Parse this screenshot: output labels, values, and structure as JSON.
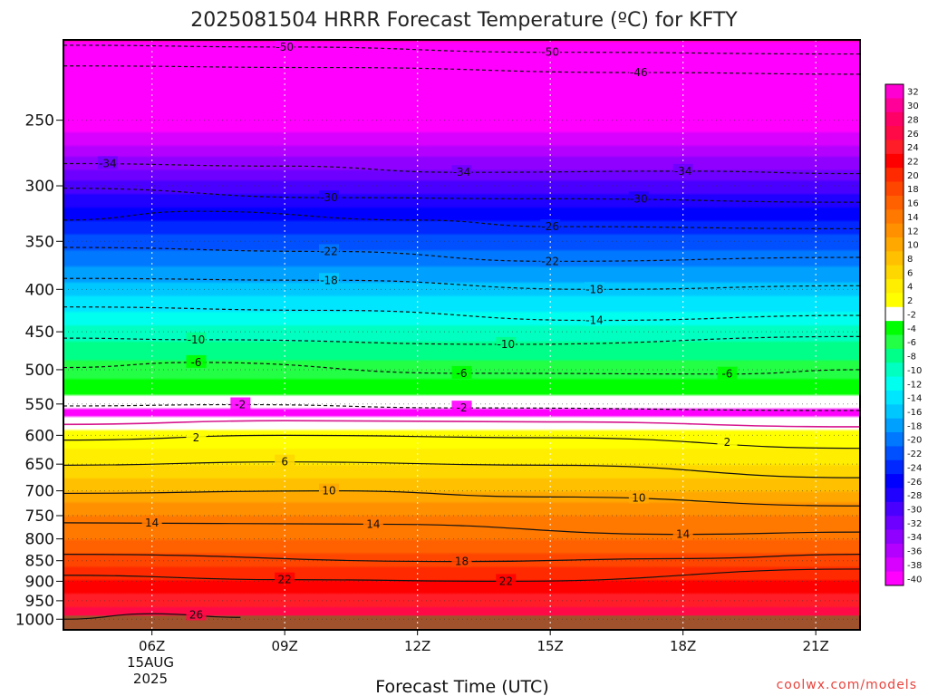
{
  "chart_data": {
    "type": "heatmap",
    "title": "2025081504 HRRR Forecast Temperature (ºC) for KFTY",
    "xlabel": "Forecast Time (UTC)",
    "ylabel": "",
    "credit": "coolwx.com/models",
    "x_ticks": [
      "06Z",
      "09Z",
      "12Z",
      "15Z",
      "18Z",
      "21Z"
    ],
    "x_range_hours_utc": [
      4,
      22
    ],
    "x_tick_hours": [
      6,
      9,
      12,
      15,
      18,
      21
    ],
    "date_label": [
      "15AUG",
      "2025"
    ],
    "y_ticks": [
      "250",
      "300",
      "350",
      "400",
      "450",
      "500",
      "550",
      "600",
      "650",
      "700",
      "750",
      "800",
      "850",
      "900",
      "950",
      "1000"
    ],
    "y_tick_values": [
      250,
      300,
      350,
      400,
      450,
      500,
      550,
      600,
      650,
      700,
      750,
      800,
      850,
      900,
      950,
      1000
    ],
    "y_range_hpa": [
      200,
      1030
    ],
    "y_scale": "log",
    "grid": true,
    "colorbar": {
      "levels": [
        "32",
        "30",
        "28",
        "26",
        "24",
        "22",
        "20",
        "18",
        "16",
        "14",
        "12",
        "10",
        "8",
        "6",
        "4",
        "2",
        "-2",
        "-4",
        "-6",
        "-8",
        "-10",
        "-12",
        "-14",
        "-16",
        "-18",
        "-20",
        "-22",
        "-24",
        "-26",
        "-28",
        "-30",
        "-32",
        "-34",
        "-36",
        "-38",
        "-40"
      ],
      "colors": [
        "#ff00d2",
        "#ff0099",
        "#ff0066",
        "#ff0a46",
        "#ff1e28",
        "#ff0000",
        "#ff2a00",
        "#ff4600",
        "#ff6000",
        "#ff7800",
        "#ff9000",
        "#ffa800",
        "#ffc000",
        "#ffd700",
        "#ffee00",
        "#ffff00",
        "#ffffff",
        "#00ff00",
        "#22ff44",
        "#00ff88",
        "#00ffc0",
        "#00ffee",
        "#00e6ff",
        "#00c8ff",
        "#00a0ff",
        "#0078ff",
        "#0050ff",
        "#0028ff",
        "#0000ff",
        "#2000ff",
        "#4a00ff",
        "#6e00ff",
        "#9000ff",
        "#b400ff",
        "#d800ff",
        "#ff00ff"
      ],
      "position": "right"
    },
    "temperature_profile": [
      {
        "p": 200,
        "t": -52
      },
      {
        "p": 250,
        "t": -42
      },
      {
        "p": 300,
        "t": -31
      },
      {
        "p": 350,
        "t": -23
      },
      {
        "p": 400,
        "t": -17
      },
      {
        "p": 450,
        "t": -11
      },
      {
        "p": 500,
        "t": -7
      },
      {
        "p": 550,
        "t": -3
      },
      {
        "p": 560,
        "t": -1
      },
      {
        "p": 580,
        "t": 1
      },
      {
        "p": 600,
        "t": 2.5
      },
      {
        "p": 650,
        "t": 6
      },
      {
        "p": 700,
        "t": 10
      },
      {
        "p": 750,
        "t": 14
      },
      {
        "p": 800,
        "t": 16
      },
      {
        "p": 850,
        "t": 19
      },
      {
        "p": 900,
        "t": 22
      },
      {
        "p": 950,
        "t": 25
      },
      {
        "p": 1000,
        "t": 28
      },
      {
        "p": 1030,
        "t": 29
      }
    ],
    "contours": [
      {
        "label": "-50",
        "style": "dashed",
        "points": [
          [
            4,
            203
          ],
          [
            9,
            204
          ],
          [
            15,
            207
          ],
          [
            22,
            208
          ]
        ],
        "label_positions": [
          [
            9,
            204
          ],
          [
            15,
            207
          ]
        ]
      },
      {
        "label": "-46",
        "style": "dashed",
        "points": [
          [
            4,
            215
          ],
          [
            10,
            216
          ],
          [
            17,
            219
          ],
          [
            22,
            220
          ]
        ],
        "label_positions": [
          [
            17,
            219
          ]
        ]
      },
      {
        "label": "-34",
        "style": "dashed",
        "points": [
          [
            4,
            282
          ],
          [
            9,
            284
          ],
          [
            13,
            289
          ],
          [
            18,
            288
          ],
          [
            22,
            290
          ]
        ],
        "label_positions": [
          [
            5,
            282
          ],
          [
            13,
            289
          ],
          [
            18,
            288
          ]
        ]
      },
      {
        "label": "-30",
        "style": "dashed",
        "points": [
          [
            4,
            302
          ],
          [
            10,
            310
          ],
          [
            15,
            311
          ],
          [
            22,
            314
          ]
        ],
        "label_positions": [
          [
            10,
            310
          ],
          [
            17,
            311
          ]
        ]
      },
      {
        "label": "-26",
        "style": "dashed",
        "points": [
          [
            4,
            330
          ],
          [
            7,
            322
          ],
          [
            12,
            330
          ],
          [
            15,
            336
          ],
          [
            22,
            338
          ]
        ],
        "label_positions": [
          [
            15,
            336
          ]
        ]
      },
      {
        "label": "-22",
        "style": "dashed",
        "points": [
          [
            4,
            356
          ],
          [
            10,
            360
          ],
          [
            15,
            370
          ],
          [
            22,
            366
          ]
        ],
        "label_positions": [
          [
            10,
            360
          ],
          [
            15,
            370
          ]
        ]
      },
      {
        "label": "-18",
        "style": "dashed",
        "points": [
          [
            4,
            388
          ],
          [
            10,
            390
          ],
          [
            16,
            400
          ],
          [
            22,
            396
          ]
        ],
        "label_positions": [
          [
            10,
            390
          ],
          [
            16,
            400
          ]
        ]
      },
      {
        "label": "-14",
        "style": "dashed",
        "points": [
          [
            4,
            420
          ],
          [
            10,
            424
          ],
          [
            16,
            436
          ],
          [
            22,
            430
          ]
        ],
        "label_positions": [
          [
            16,
            436
          ]
        ]
      },
      {
        "label": "-10",
        "style": "dashed",
        "points": [
          [
            4,
            458
          ],
          [
            7,
            460
          ],
          [
            14,
            466
          ],
          [
            22,
            456
          ]
        ],
        "label_positions": [
          [
            7,
            460
          ],
          [
            14,
            466
          ]
        ]
      },
      {
        "label": "-6",
        "style": "dashed",
        "points": [
          [
            4,
            497
          ],
          [
            7,
            490
          ],
          [
            13,
            505
          ],
          [
            19,
            506
          ],
          [
            22,
            500
          ]
        ],
        "label_positions": [
          [
            7,
            490
          ],
          [
            13,
            505
          ],
          [
            19,
            506
          ]
        ]
      },
      {
        "label": "-2",
        "style": "dashed",
        "points": [
          [
            4,
            553
          ],
          [
            8,
            551
          ],
          [
            13,
            556
          ],
          [
            22,
            560
          ]
        ],
        "label_positions": [
          [
            8,
            551
          ],
          [
            13,
            556
          ]
        ]
      },
      {
        "label": "0",
        "style": "magenta",
        "points": [
          [
            4,
            582
          ],
          [
            9,
            576
          ],
          [
            15,
            578
          ],
          [
            22,
            586
          ]
        ],
        "label_positions": []
      },
      {
        "label": "2",
        "style": "solid",
        "points": [
          [
            4,
            608
          ],
          [
            9,
            600
          ],
          [
            15,
            604
          ],
          [
            22,
            622
          ]
        ],
        "label_positions": [
          [
            7,
            604
          ],
          [
            19,
            612
          ]
        ]
      },
      {
        "label": "6",
        "style": "solid",
        "points": [
          [
            4,
            652
          ],
          [
            9,
            646
          ],
          [
            15,
            652
          ],
          [
            22,
            675
          ]
        ],
        "label_positions": [
          [
            9,
            646
          ]
        ]
      },
      {
        "label": "10",
        "style": "solid",
        "points": [
          [
            4,
            705
          ],
          [
            10,
            700
          ],
          [
            15,
            712
          ],
          [
            22,
            730
          ]
        ],
        "label_positions": [
          [
            10,
            700
          ],
          [
            17,
            714
          ]
        ]
      },
      {
        "label": "14",
        "style": "solid",
        "points": [
          [
            4,
            765
          ],
          [
            11,
            768
          ],
          [
            18,
            790
          ],
          [
            22,
            785
          ]
        ],
        "label_positions": [
          [
            6,
            765
          ],
          [
            11,
            768
          ],
          [
            18,
            790
          ]
        ]
      },
      {
        "label": "18",
        "style": "solid",
        "points": [
          [
            4,
            835
          ],
          [
            13,
            852
          ],
          [
            18,
            845
          ],
          [
            22,
            835
          ]
        ],
        "label_positions": [
          [
            13,
            852
          ]
        ]
      },
      {
        "label": "22",
        "style": "solid",
        "points": [
          [
            4,
            885
          ],
          [
            9,
            896
          ],
          [
            14,
            900
          ],
          [
            22,
            870
          ]
        ],
        "label_positions": [
          [
            9,
            896
          ],
          [
            14,
            900
          ]
        ]
      },
      {
        "label": "26",
        "style": "solid",
        "points": [
          [
            4,
            1000
          ],
          [
            6,
            985
          ],
          [
            8,
            995
          ]
        ],
        "label_positions": [
          [
            7,
            988
          ]
        ]
      }
    ]
  }
}
